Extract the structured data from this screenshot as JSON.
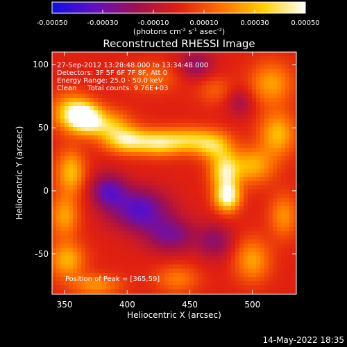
{
  "chart_data": {
    "type": "heatmap",
    "title": "Reconstructed RHESSI Image",
    "colorbar": {
      "tick_labels": [
        "-0.00050",
        "-0.00030",
        "-0.00010",
        "0.00010",
        "0.00030",
        "0.00050"
      ],
      "ticks": [
        -0.0005,
        -0.0003,
        -0.0001,
        0.0001,
        0.0003,
        0.0005
      ],
      "range": [
        -0.0005,
        0.0005
      ],
      "unit_label_base": "(photons cm",
      "unit_sup1": "-2",
      "unit_mid1": " s",
      "unit_sup2": "-1",
      "unit_mid2": " asec",
      "unit_sup3": "-2",
      "unit_end": ")",
      "colors": [
        "#1010e0",
        "#6010c0",
        "#a01050",
        "#e02010",
        "#ff7000",
        "#ffd000",
        "#ffffff"
      ]
    },
    "xlabel": "Heliocentric X (arcsec)",
    "ylabel": "Heliocentric Y (arcsec)",
    "xlim": [
      340,
      535
    ],
    "ylim": [
      -82,
      110
    ],
    "x_ticks": [
      350,
      400,
      450,
      500
    ],
    "y_ticks": [
      -50,
      0,
      50,
      100
    ],
    "info_lines": [
      "27-Sep-2012 13:28:48.000 to 13:34:48.000",
      "Detectors: 3F 5F 6F 7F 8F, Att 0",
      "Energy Range: 25.0 - 50.0 keV",
      "Clean     Total counts: 9.76E+03"
    ],
    "peak_label": "Position of Peak = [365,59]",
    "peak_position": [
      365,
      59
    ],
    "blobs": [
      {
        "x": 367,
        "y": 58,
        "value": 0.0005,
        "sx": 9,
        "sy": 8
      },
      {
        "x": 355,
        "y": 62,
        "value": 0.00035,
        "sx": 10,
        "sy": 10
      },
      {
        "x": 385,
        "y": 52,
        "value": 0.0003,
        "sx": 12,
        "sy": 8
      },
      {
        "x": 400,
        "y": 40,
        "value": 0.0004,
        "sx": 12,
        "sy": 7
      },
      {
        "x": 425,
        "y": 38,
        "value": 0.00035,
        "sx": 12,
        "sy": 7
      },
      {
        "x": 450,
        "y": 40,
        "value": 0.00032,
        "sx": 14,
        "sy": 7
      },
      {
        "x": 470,
        "y": 35,
        "value": 0.00028,
        "sx": 10,
        "sy": 8
      },
      {
        "x": 478,
        "y": 15,
        "value": 0.0004,
        "sx": 8,
        "sy": 10
      },
      {
        "x": 480,
        "y": -5,
        "value": 0.0005,
        "sx": 7,
        "sy": 8
      },
      {
        "x": 500,
        "y": 20,
        "value": 0.00028,
        "sx": 12,
        "sy": 10
      },
      {
        "x": 520,
        "y": 45,
        "value": 0.0003,
        "sx": 10,
        "sy": 12
      },
      {
        "x": 515,
        "y": 85,
        "value": 0.00025,
        "sx": 12,
        "sy": 12
      },
      {
        "x": 355,
        "y": 15,
        "value": 0.0003,
        "sx": 8,
        "sy": 12
      },
      {
        "x": 350,
        "y": -20,
        "value": 0.00025,
        "sx": 8,
        "sy": 12
      },
      {
        "x": 352,
        "y": -55,
        "value": 0.00028,
        "sx": 10,
        "sy": 10
      },
      {
        "x": 375,
        "y": -75,
        "value": 0.00022,
        "sx": 14,
        "sy": 6
      },
      {
        "x": 440,
        "y": -70,
        "value": 0.00018,
        "sx": 12,
        "sy": 8
      },
      {
        "x": 500,
        "y": -55,
        "value": 0.00025,
        "sx": 10,
        "sy": 12
      },
      {
        "x": 525,
        "y": -20,
        "value": 0.00022,
        "sx": 8,
        "sy": 12
      },
      {
        "x": 420,
        "y": 90,
        "value": 0.00015,
        "sx": 14,
        "sy": 8
      },
      {
        "x": 470,
        "y": 80,
        "value": 0.00012,
        "sx": 10,
        "sy": 8
      },
      {
        "x": 410,
        "y": -15,
        "value": -0.00035,
        "sx": 16,
        "sy": 12
      },
      {
        "x": 385,
        "y": 0,
        "value": -0.0003,
        "sx": 10,
        "sy": 10
      },
      {
        "x": 435,
        "y": -35,
        "value": -0.00025,
        "sx": 14,
        "sy": 10
      },
      {
        "x": 470,
        "y": -40,
        "value": -0.0002,
        "sx": 10,
        "sy": 10
      },
      {
        "x": 455,
        "y": 100,
        "value": -0.0002,
        "sx": 10,
        "sy": 8
      },
      {
        "x": 490,
        "y": 70,
        "value": -0.00015,
        "sx": 8,
        "sy": 8
      }
    ]
  },
  "footer": {
    "date": "14-May-2022 18:35"
  }
}
